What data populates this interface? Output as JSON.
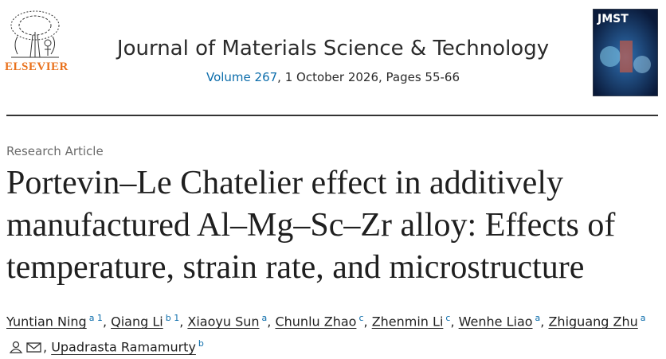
{
  "header": {
    "publisher": "ELSEVIER",
    "journal": "Journal of Materials Science & Technology",
    "volume_link": "Volume 267",
    "issue_details": ", 1 October 2026, Pages 55-66",
    "cover_label": "JMST"
  },
  "article": {
    "type": "Research Article",
    "title": "Portevin–Le Chatelier effect in additively manufactured Al–Mg–Sc–Zr alloy: Effects of temperature, strain rate, and microstructure",
    "author_separator": ",",
    "authors": [
      {
        "name": "Yuntian Ning",
        "affil": "a 1"
      },
      {
        "name": "Qiang Li",
        "affil": "b 1"
      },
      {
        "name": "Xiaoyu Sun",
        "affil": "a"
      },
      {
        "name": "Chunlu Zhao",
        "affil": "c"
      },
      {
        "name": "Zhenmin Li",
        "affil": "c"
      },
      {
        "name": "Wenhe Liao",
        "affil": "a"
      },
      {
        "name": "Zhiguang Zhu",
        "affil": "a"
      },
      {
        "name": "Upadrasta Ramamurty",
        "affil": "b"
      }
    ]
  }
}
